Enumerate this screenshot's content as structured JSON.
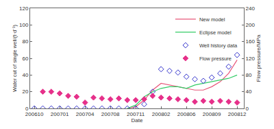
{
  "chart_data": {
    "type": "line",
    "x_label": "Date",
    "y_label": "Water cut of single well/(t·d⁻¹)",
    "y2_label": "Flow pressure/MPa",
    "categories": [
      "200610",
      null,
      null,
      "200701",
      null,
      null,
      "200704",
      null,
      null,
      "200708",
      null,
      null,
      "200711",
      null,
      null,
      "200802",
      null,
      null,
      "200806",
      null,
      null,
      "200809",
      null,
      null,
      "200812"
    ],
    "ylim": [
      0,
      120
    ],
    "yticks": [
      0,
      20,
      40,
      60,
      80,
      100,
      120
    ],
    "y2lim": [
      0,
      240
    ],
    "y2ticks": [
      0,
      40,
      80,
      120,
      160,
      200,
      240
    ],
    "grid": false,
    "legend": "upper right",
    "series": [
      {
        "name": "New model",
        "type": "line",
        "color": "#e8577a",
        "line_style": "solid",
        "values": [
          null,
          null,
          null,
          null,
          null,
          null,
          null,
          null,
          null,
          null,
          null,
          0,
          2,
          10,
          22,
          30,
          28,
          26,
          24,
          22,
          22,
          26,
          32,
          42,
          58
        ]
      },
      {
        "name": "Eclipse model",
        "type": "line",
        "color": "#33cc66",
        "line_style": "solid",
        "values": [
          null,
          null,
          null,
          null,
          null,
          null,
          null,
          null,
          null,
          null,
          null,
          0,
          4,
          14,
          20,
          24,
          26,
          26,
          24,
          28,
          30,
          32,
          34,
          36,
          40
        ]
      },
      {
        "name": "Well history data",
        "type": "scatter",
        "color": "#3333cc",
        "marker": "diamond-open",
        "values": [
          0,
          0,
          0,
          0,
          0,
          0,
          0,
          0,
          0,
          0,
          0,
          0,
          0,
          5,
          20,
          47,
          45,
          43,
          38,
          35,
          33,
          37,
          42,
          50,
          64
        ]
      },
      {
        "name": "Flow pressure",
        "type": "scatter",
        "color": "#e6308a",
        "marker": "diamond",
        "axis": "y2",
        "values": [
          null,
          40,
          40,
          36,
          30,
          28,
          14,
          26,
          24,
          22,
          24,
          20,
          20,
          22,
          30,
          26,
          24,
          22,
          20,
          16,
          18,
          16,
          18,
          16,
          14
        ]
      }
    ]
  }
}
